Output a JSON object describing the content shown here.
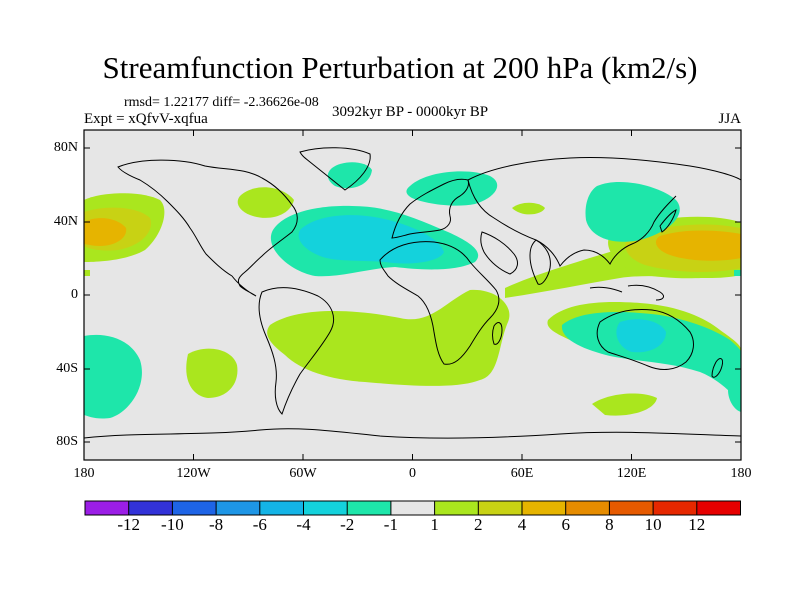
{
  "title": "Streamfunction Perturbation at 200 hPa (km2/s)",
  "stats_line": "rmsd= 1.22177 diff= -2.36626e-08",
  "experiment_label": "Expt = xQfvV-xqfua",
  "period_label": "3092kyr BP - 0000kyr BP",
  "season_label": "JJA",
  "axes": {
    "y_ticks": [
      "80N",
      "40N",
      "0",
      "40S",
      "80S"
    ],
    "x_ticks": [
      "180",
      "120W",
      "60W",
      "0",
      "60E",
      "120E",
      "180"
    ]
  },
  "colorbar": {
    "labels": [
      "-12",
      "-10",
      "-8",
      "-6",
      "-4",
      "-2",
      "-1",
      "1",
      "2",
      "4",
      "6",
      "8",
      "10",
      "12"
    ],
    "colors": [
      "#9b1ee6",
      "#3232d8",
      "#1e64e6",
      "#1e96e6",
      "#14b4e6",
      "#14d2dc",
      "#1ee6aa",
      "#e6e6e6",
      "#aae61e",
      "#c8d214",
      "#e6b400",
      "#e68c00",
      "#e65a00",
      "#e62800",
      "#e60000"
    ]
  },
  "colors": {
    "background": "#e6e6e6",
    "positive_light": "#aae61e",
    "positive_medium": "#c8d214",
    "positive_strong": "#e6b400",
    "negative_light": "#1ee6aa",
    "negative_medium": "#14d2dc"
  }
}
